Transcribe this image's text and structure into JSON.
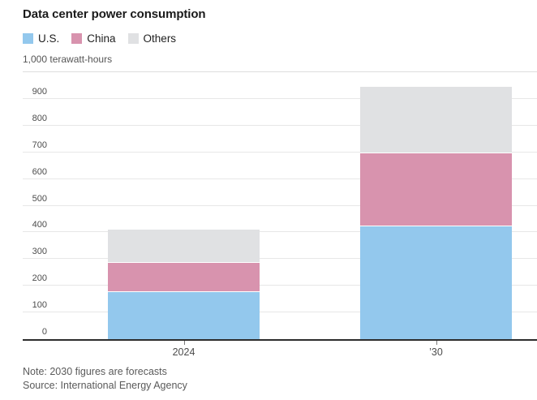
{
  "header": {
    "title": "Data center power consumption"
  },
  "footer": {
    "note": "Note: 2030 figures are forecasts",
    "source": "Source: International Energy Agency"
  },
  "chart_data": {
    "type": "bar",
    "stacked": true,
    "title": "Data center power consumption",
    "categories": [
      "2024",
      "’30"
    ],
    "series": [
      {
        "name": "U.S.",
        "color": "#93c8ed",
        "values": [
          180,
          425
        ]
      },
      {
        "name": "China",
        "color": "#d893ae",
        "values": [
          110,
          275
        ]
      },
      {
        "name": "Others",
        "color": "#e0e1e3",
        "values": [
          120,
          245
        ]
      }
    ],
    "stack_totals": [
      410,
      945
    ],
    "xlabel": "",
    "ylabel": "1,000 terawatt-hours",
    "ylim": [
      0,
      1000
    ],
    "ytick_step": 100,
    "ytick_labels": [
      "0",
      "100",
      "200",
      "300",
      "400",
      "500",
      "600",
      "700",
      "800",
      "900"
    ],
    "grid": true,
    "legend_position": "top-left",
    "colors": {
      "axis_line": "#2d2d2d",
      "gridline": "#e7e7e7",
      "tick_label": "#4c4c4c"
    }
  }
}
